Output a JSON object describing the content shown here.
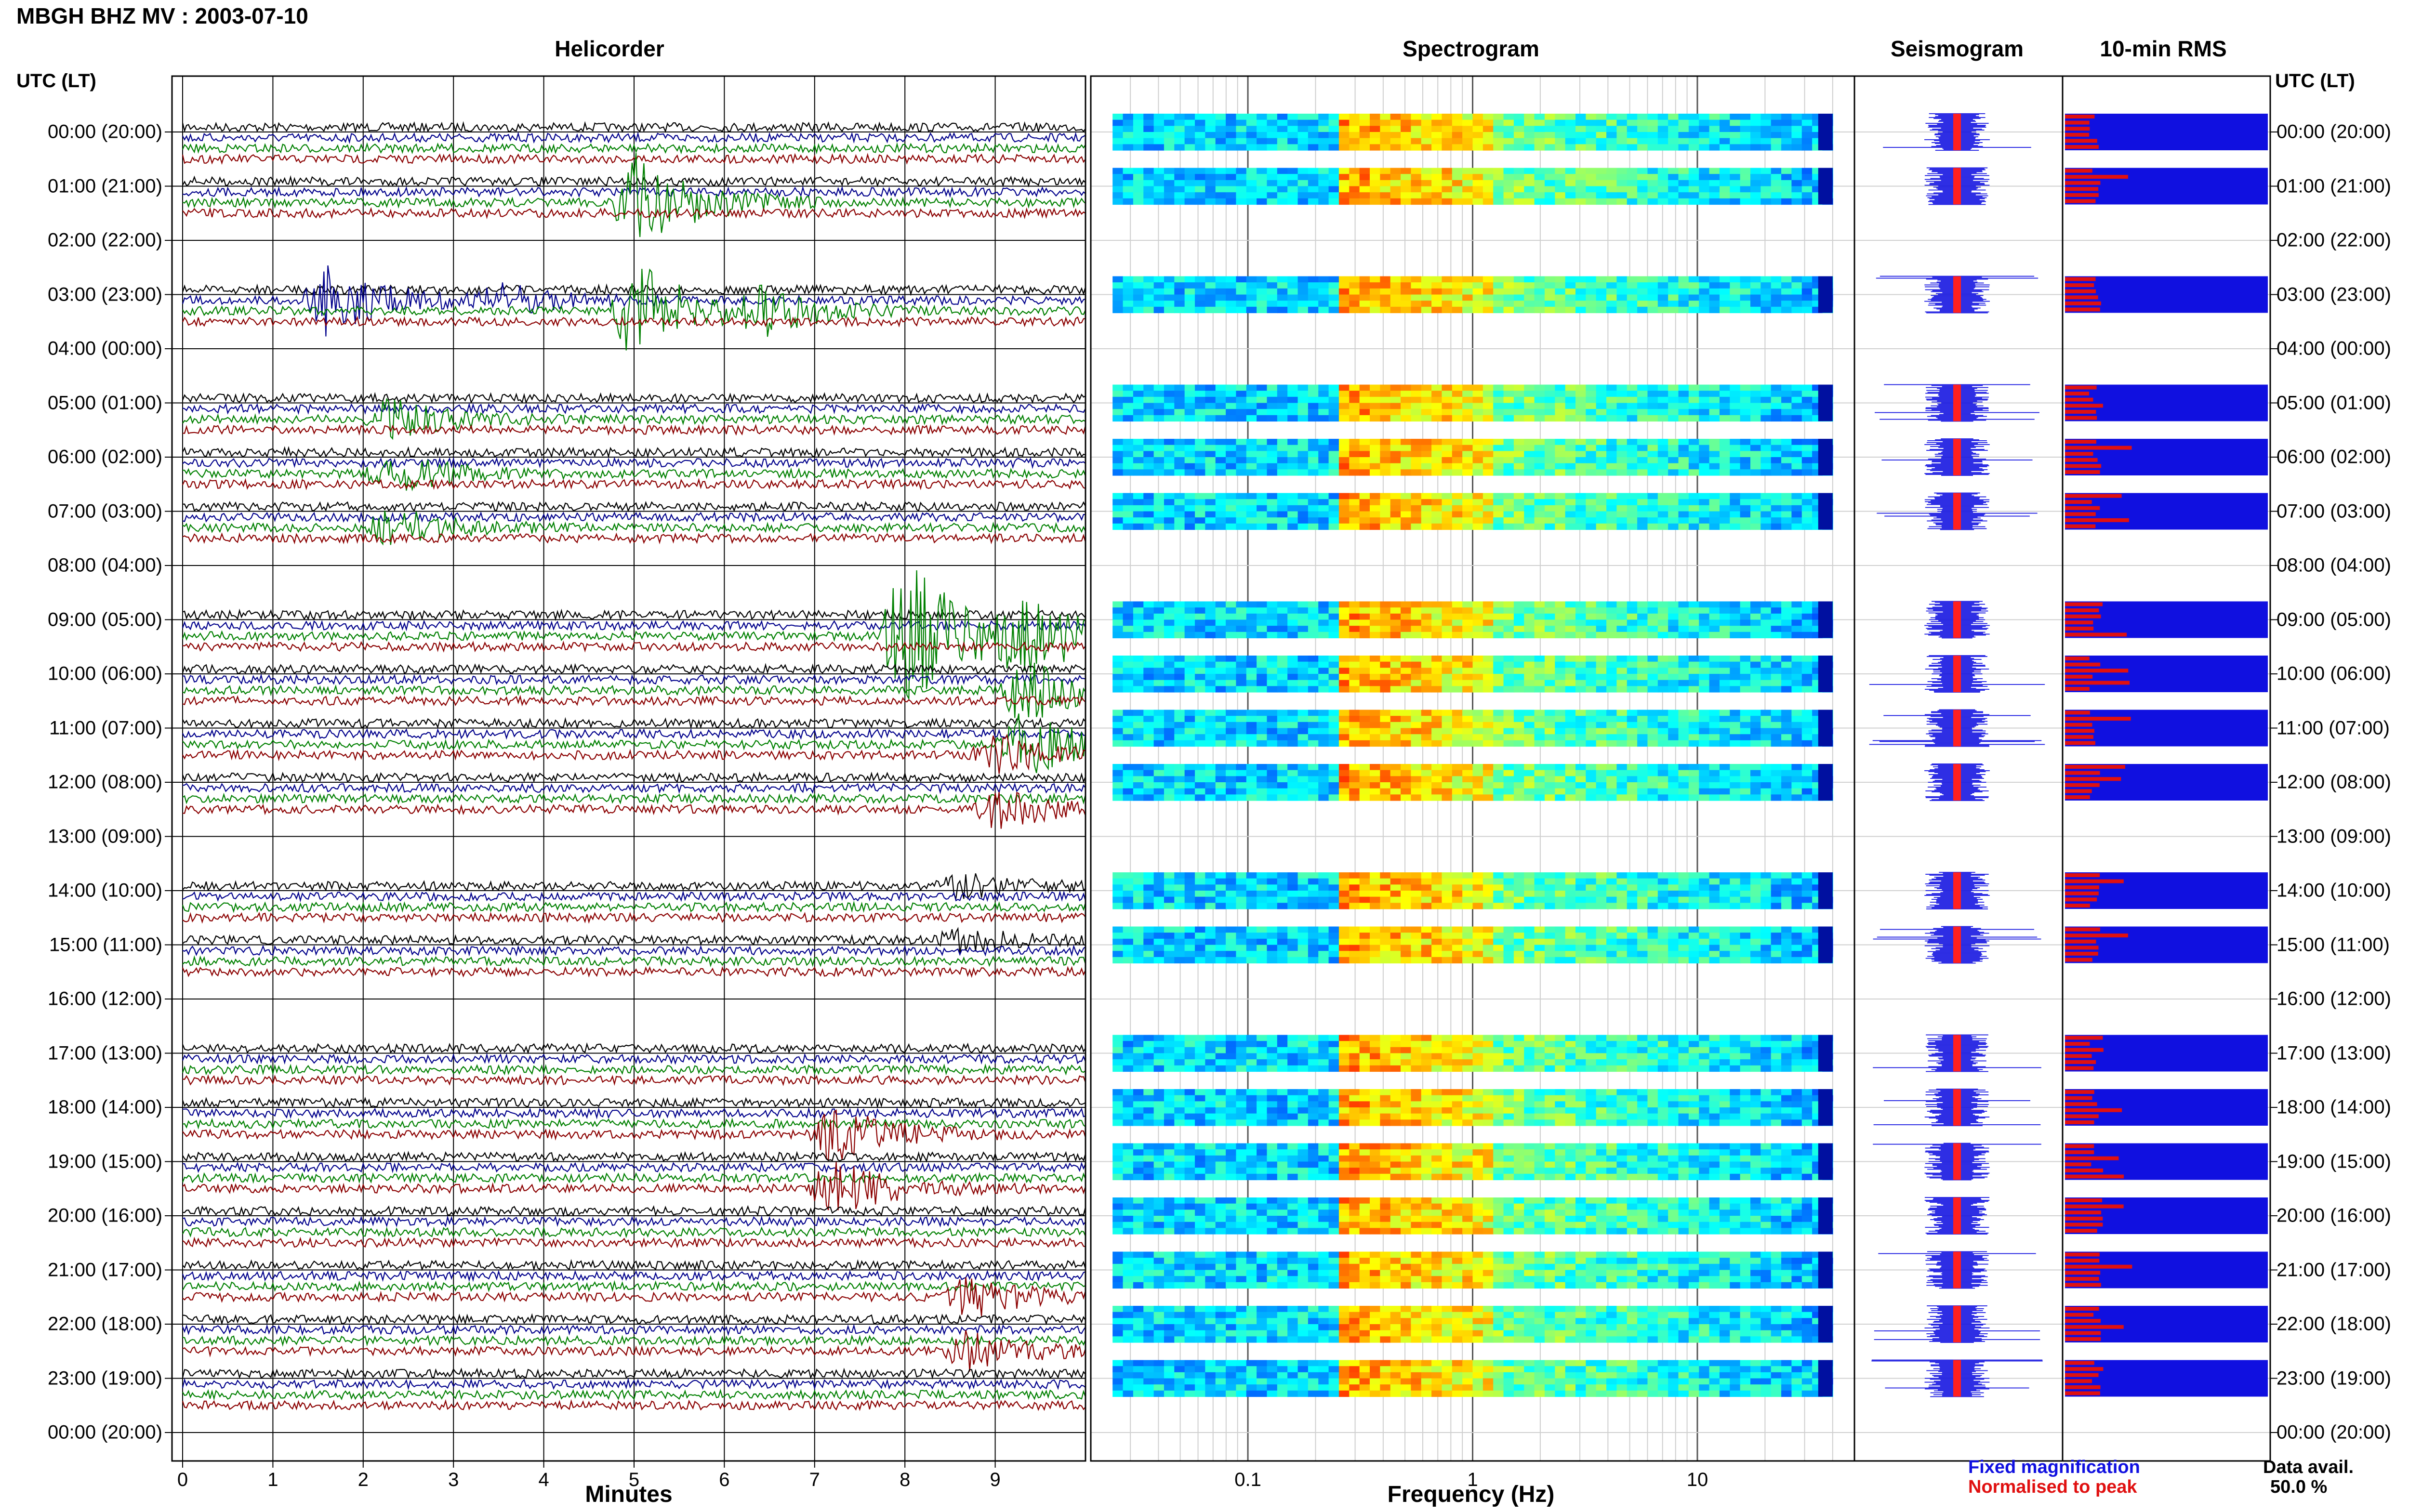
{
  "title": "MBGH BHZ MV : 2003-07-10",
  "panels": {
    "helicorder": "Helicorder",
    "spectrogram": "Spectrogram",
    "seismogram": "Seismogram",
    "rms": "10-min RMS"
  },
  "utc_header_left": "UTC (LT)",
  "utc_header_right": "UTC (LT)",
  "time_labels": [
    "00:00 (20:00)",
    "01:00 (21:00)",
    "02:00 (22:00)",
    "03:00 (23:00)",
    "04:00 (00:00)",
    "05:00 (01:00)",
    "06:00 (02:00)",
    "07:00 (03:00)",
    "08:00 (04:00)",
    "09:00 (05:00)",
    "10:00 (06:00)",
    "11:00 (07:00)",
    "12:00 (08:00)",
    "13:00 (09:00)",
    "14:00 (10:00)",
    "15:00 (11:00)",
    "16:00 (12:00)",
    "17:00 (13:00)",
    "18:00 (14:00)",
    "19:00 (15:00)",
    "20:00 (16:00)",
    "21:00 (17:00)",
    "22:00 (18:00)",
    "23:00 (19:00)",
    "00:00 (20:00)"
  ],
  "axes": {
    "minutes_label": "Minutes",
    "frequency_label": "Frequency (Hz)"
  },
  "legend": {
    "fixed": "Fixed magnification",
    "normalised": "Normalised to peak",
    "fixed_color": "#1010e0",
    "normalised_color": "#e01010"
  },
  "data_availability": {
    "label": "Data avail.",
    "value": "50.0 %"
  },
  "chart_data": {
    "type": "helicorder",
    "xlabel": "Minutes",
    "x_ticks": [
      "0",
      "1",
      "2",
      "3",
      "4",
      "5",
      "6",
      "7",
      "8",
      "9"
    ],
    "xlim": [
      0,
      10
    ],
    "trace_colors": [
      "#000000",
      "#00008b",
      "#008000",
      "#8b0000"
    ],
    "hours_with_data": [
      0,
      1,
      3,
      5,
      6,
      7,
      9,
      10,
      11,
      12,
      14,
      15,
      17,
      18,
      19,
      20,
      21,
      22,
      23
    ],
    "events": [
      {
        "hour": 2.5,
        "minute": 1.6,
        "size": 0.9,
        "color": "#00008b"
      },
      {
        "hour": 2.5,
        "minute": 5.0,
        "size": 1.3,
        "color": "#008000"
      },
      {
        "hour": 2.8,
        "minute": 3.5,
        "size": 0.4,
        "color": "#00008b"
      },
      {
        "hour": 4.3,
        "minute": 6.4,
        "size": 0.5,
        "color": "#008000"
      },
      {
        "hour": 6.4,
        "minute": 2.3,
        "size": 0.5,
        "color": "#008000"
      },
      {
        "hour": 9.0,
        "minute": 8.0,
        "size": 2.2,
        "color": "#008000"
      },
      {
        "hour": 10.3,
        "minute": 9.3,
        "size": 0.9,
        "color": "#008000"
      },
      {
        "hour": 12.2,
        "minute": 9.0,
        "size": 0.5,
        "color": "#8b0000"
      },
      {
        "hour": 14.0,
        "minute": 8.6,
        "size": 0.3,
        "color": "#000000"
      },
      {
        "hour": 19.0,
        "minute": 7.2,
        "size": 0.7,
        "color": "#8b0000"
      },
      {
        "hour": 22.0,
        "minute": 8.7,
        "size": 0.5,
        "color": "#8b0000"
      }
    ],
    "spectrogram": {
      "xlabel": "Frequency (Hz)",
      "x_scale": "log",
      "x_ticks": [
        "0.1",
        "1",
        "10"
      ],
      "xlim": [
        0.02,
        50
      ]
    },
    "rms": {
      "title": "10-min RMS",
      "fixed_color": "#1010e0",
      "normalised_color": "#e01010"
    }
  }
}
